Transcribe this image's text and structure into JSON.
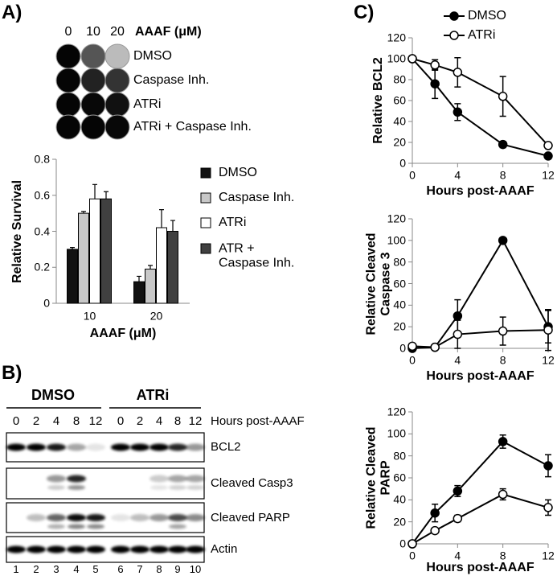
{
  "figure": {
    "panel_labels": [
      "A)",
      "B)",
      "C)"
    ],
    "colony": {
      "doses": [
        0,
        10,
        20
      ],
      "dose_label": "AAAF (μM)",
      "rows": [
        "DMSO",
        "Caspase Inh.",
        "ATRi",
        "ATRi + Caspase Inh."
      ]
    },
    "blot": {
      "groups": [
        {
          "name": "DMSO",
          "hours": [
            0,
            2,
            4,
            8,
            12
          ]
        },
        {
          "name": "ATRi",
          "hours": [
            0,
            2,
            4,
            8,
            12
          ]
        }
      ],
      "hours_label": "Hours post-AAAF",
      "bands": [
        "BCL2",
        "Cleaved Casp3",
        "Cleaved PARP",
        "Actin"
      ],
      "lanes": [
        1,
        2,
        3,
        4,
        5,
        6,
        7,
        8,
        9,
        10
      ]
    }
  },
  "chart_data": [
    {
      "type": "bar",
      "x_label": "AAAF (μM)",
      "y_label": "Relative Survival",
      "categories": [
        "10",
        "20"
      ],
      "ylim": [
        0,
        0.8
      ],
      "yticks": [
        0,
        0.2,
        0.4,
        0.6,
        0.8
      ],
      "series": [
        {
          "name": "DMSO",
          "color": "#111111",
          "values": [
            0.3,
            0.12
          ],
          "errors": [
            0.01,
            0.03
          ]
        },
        {
          "name": "Caspase Inh.",
          "color": "#c8c8c8",
          "values": [
            0.5,
            0.19
          ],
          "errors": [
            0.01,
            0.02
          ]
        },
        {
          "name": "ATRi",
          "color": "#ffffff",
          "values": [
            0.58,
            0.42
          ],
          "errors": [
            0.08,
            0.1
          ]
        },
        {
          "name": "ATR + Caspase Inh.",
          "color": "#404040",
          "values": [
            0.58,
            0.4
          ],
          "errors": [
            0.04,
            0.06
          ]
        }
      ]
    },
    {
      "type": "line",
      "x_label": "Hours post-AAAF",
      "y_label": "Relative BCL2",
      "legend": "top",
      "x": [
        0,
        2,
        4,
        8,
        12
      ],
      "xlim": [
        0,
        12
      ],
      "xticks": [
        0,
        4,
        8,
        12
      ],
      "ylim": [
        0,
        120
      ],
      "yticks": [
        0,
        20,
        40,
        60,
        80,
        100,
        120
      ],
      "series": [
        {
          "name": "DMSO",
          "color": "#000000",
          "fill": "#000000",
          "values": [
            100,
            76,
            49,
            18,
            7
          ],
          "errors": [
            0,
            14,
            8,
            3,
            2
          ]
        },
        {
          "name": "ATRi",
          "color": "#000000",
          "fill": "#ffffff",
          "values": [
            100,
            94,
            87,
            64,
            17
          ],
          "errors": [
            0,
            5,
            14,
            19,
            3
          ]
        }
      ]
    },
    {
      "type": "line",
      "x_label": "Hours post-AAAF",
      "y_label": "Relative Cleaved Caspase 3",
      "x": [
        0,
        2,
        4,
        8,
        12
      ],
      "xlim": [
        0,
        12
      ],
      "xticks": [
        0,
        4,
        8,
        12
      ],
      "ylim": [
        0,
        120
      ],
      "yticks": [
        0,
        20,
        40,
        60,
        80,
        100,
        120
      ],
      "series": [
        {
          "color": "#000000",
          "fill": "#000000",
          "values": [
            0,
            1,
            30,
            100,
            20
          ],
          "errors": [
            0,
            1,
            15,
            0,
            15
          ]
        },
        {
          "color": "#000000",
          "fill": "#ffffff",
          "values": [
            2,
            1,
            13,
            16,
            17
          ],
          "errors": [
            1,
            1,
            13,
            13,
            19
          ]
        }
      ]
    },
    {
      "type": "line",
      "x_label": "Hours post-AAAF",
      "y_label": "Relative Cleaved PARP",
      "x": [
        0,
        2,
        4,
        8,
        12
      ],
      "xlim": [
        0,
        12
      ],
      "xticks": [
        0,
        4,
        8,
        12
      ],
      "ylim": [
        0,
        120
      ],
      "yticks": [
        0,
        20,
        40,
        60,
        80,
        100,
        120
      ],
      "series": [
        {
          "color": "#000000",
          "fill": "#000000",
          "values": [
            0,
            28,
            48,
            93,
            71
          ],
          "errors": [
            0,
            8,
            5,
            6,
            10
          ]
        },
        {
          "color": "#000000",
          "fill": "#ffffff",
          "values": [
            0,
            12,
            23,
            45,
            33
          ],
          "errors": [
            0,
            2,
            3,
            5,
            7
          ]
        }
      ]
    }
  ]
}
